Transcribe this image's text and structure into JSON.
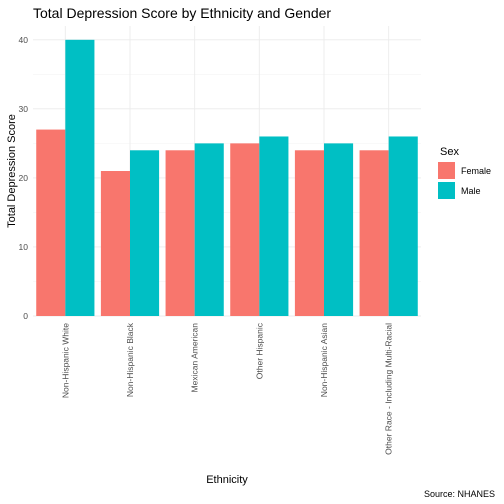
{
  "chart_data": {
    "type": "bar",
    "title": "Total Depression Score by Ethnicity and Gender",
    "xlabel": "Ethnicity",
    "ylabel": "Total Depression Score",
    "caption": "Source: NHANES",
    "categories": [
      "Non-Hispanic White",
      "Non-Hispanic Black",
      "Mexican American",
      "Other Hispanic",
      "Non-Hispanic Asian",
      "Other Race - Including Multi-Racial"
    ],
    "series": [
      {
        "name": "Female",
        "color": "#F8766D",
        "values": [
          27,
          21,
          24,
          25,
          24,
          24
        ]
      },
      {
        "name": "Male",
        "color": "#00BFC4",
        "values": [
          40,
          24,
          25,
          26,
          25,
          26
        ]
      }
    ],
    "ylim": [
      0,
      42
    ],
    "yticks": [
      "0",
      "10",
      "20",
      "30",
      "40"
    ],
    "grid": true,
    "legend": {
      "title": "Sex",
      "position": "right"
    }
  }
}
